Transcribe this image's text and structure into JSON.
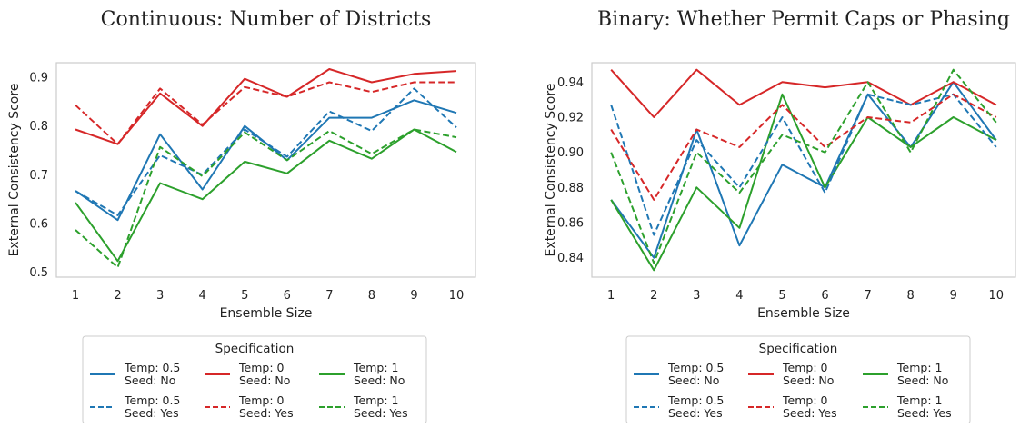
{
  "chart_data": [
    {
      "type": "line",
      "title": "Continuous: Number of Districts",
      "xlabel": "Ensemble Size",
      "ylabel": "External Consistency Score",
      "x": [
        1,
        2,
        3,
        4,
        5,
        6,
        7,
        8,
        9,
        10
      ],
      "xlim": [
        0.55,
        10.45
      ],
      "ylim": [
        0.49,
        0.93
      ],
      "yticks": [
        0.5,
        0.6,
        0.7,
        0.8,
        0.9
      ],
      "ytick_labels": [
        "0.5",
        "0.6",
        "0.7",
        "0.8",
        "0.9"
      ],
      "grid": false,
      "legend": "below",
      "series": [
        {
          "name": "Temp: 0.5\nSeed: No",
          "color": "#1f77b4",
          "dash": "solid",
          "values": [
            0.667,
            0.607,
            0.783,
            0.67,
            0.8,
            0.73,
            0.817,
            0.817,
            0.853,
            0.827
          ]
        },
        {
          "name": "Temp: 0\nSeed: No",
          "color": "#d62728",
          "dash": "solid",
          "values": [
            0.793,
            0.763,
            0.867,
            0.8,
            0.897,
            0.86,
            0.917,
            0.89,
            0.907,
            0.913
          ]
        },
        {
          "name": "Temp: 1\nSeed: No",
          "color": "#2ca02c",
          "dash": "solid",
          "values": [
            0.643,
            0.523,
            0.683,
            0.65,
            0.727,
            0.703,
            0.77,
            0.733,
            0.793,
            0.747
          ]
        },
        {
          "name": "Temp: 0.5\nSeed: Yes",
          "color": "#1f77b4",
          "dash": "dashed",
          "values": [
            0.667,
            0.617,
            0.74,
            0.7,
            0.793,
            0.737,
            0.83,
            0.79,
            0.877,
            0.797
          ]
        },
        {
          "name": "Temp: 0\nSeed: Yes",
          "color": "#d62728",
          "dash": "dashed",
          "values": [
            0.843,
            0.763,
            0.877,
            0.803,
            0.88,
            0.86,
            0.89,
            0.87,
            0.89,
            0.89
          ]
        },
        {
          "name": "Temp: 1\nSeed: Yes",
          "color": "#2ca02c",
          "dash": "dashed",
          "values": [
            0.587,
            0.51,
            0.757,
            0.697,
            0.787,
            0.73,
            0.79,
            0.743,
            0.793,
            0.777
          ]
        }
      ]
    },
    {
      "type": "line",
      "title": "Binary: Whether Permit Caps or Phasing",
      "xlabel": "Ensemble Size",
      "ylabel": "External Consistency Score",
      "x": [
        1,
        2,
        3,
        4,
        5,
        6,
        7,
        8,
        9,
        10
      ],
      "xlim": [
        0.55,
        10.45
      ],
      "ylim": [
        0.829,
        0.951
      ],
      "yticks": [
        0.84,
        0.86,
        0.88,
        0.9,
        0.92,
        0.94
      ],
      "ytick_labels": [
        "0.84",
        "0.86",
        "0.88",
        "0.90",
        "0.92",
        "0.94"
      ],
      "grid": false,
      "legend": "below",
      "series": [
        {
          "name": "Temp: 0.5\nSeed: No",
          "color": "#1f77b4",
          "dash": "solid",
          "values": [
            0.873,
            0.84,
            0.913,
            0.847,
            0.893,
            0.88,
            0.933,
            0.903,
            0.94,
            0.907
          ]
        },
        {
          "name": "Temp: 0\nSeed: No",
          "color": "#d62728",
          "dash": "solid",
          "values": [
            0.947,
            0.92,
            0.947,
            0.927,
            0.94,
            0.937,
            0.94,
            0.927,
            0.94,
            0.927
          ]
        },
        {
          "name": "Temp: 1\nSeed: No",
          "color": "#2ca02c",
          "dash": "solid",
          "values": [
            0.873,
            0.833,
            0.88,
            0.857,
            0.933,
            0.88,
            0.92,
            0.903,
            0.92,
            0.907
          ]
        },
        {
          "name": "Temp: 0.5\nSeed: Yes",
          "color": "#1f77b4",
          "dash": "dashed",
          "values": [
            0.927,
            0.853,
            0.907,
            0.88,
            0.92,
            0.877,
            0.933,
            0.927,
            0.933,
            0.903
          ]
        },
        {
          "name": "Temp: 0\nSeed: Yes",
          "color": "#d62728",
          "dash": "dashed",
          "values": [
            0.913,
            0.873,
            0.913,
            0.903,
            0.927,
            0.903,
            0.92,
            0.917,
            0.933,
            0.92
          ]
        },
        {
          "name": "Temp: 1\nSeed: Yes",
          "color": "#2ca02c",
          "dash": "dashed",
          "values": [
            0.9,
            0.837,
            0.9,
            0.877,
            0.91,
            0.9,
            0.94,
            0.9,
            0.947,
            0.917
          ]
        }
      ]
    }
  ],
  "legend": {
    "title": "Specification"
  }
}
